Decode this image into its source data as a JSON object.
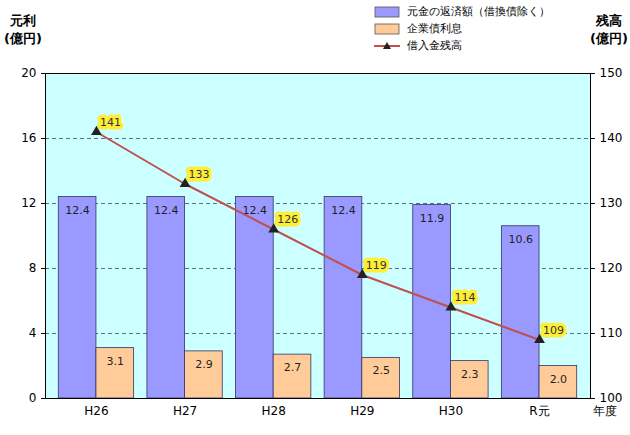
{
  "chart_data": {
    "type": "bar",
    "y_label": "元利\n(億円)",
    "y2_label": "残高\n(億円)",
    "x_label": "年度",
    "categories": [
      "H26",
      "H27",
      "H28",
      "H29",
      "H30",
      "R元"
    ],
    "series": [
      {
        "name": "元金の返済額（借換債除く）",
        "type": "bar",
        "color": "#9999ff",
        "values": [
          12.4,
          12.4,
          12.4,
          12.4,
          11.9,
          10.6
        ]
      },
      {
        "name": "企業債利息",
        "type": "bar",
        "color": "#ffcc99",
        "values": [
          3.1,
          2.9,
          2.7,
          2.5,
          2.3,
          2.0
        ],
        "value_labels": [
          "3.1",
          "2.9",
          "2.7",
          "2.5",
          "2.3",
          "2.0"
        ]
      },
      {
        "name": "借入金残高",
        "type": "line",
        "axis": "y2",
        "color": "#c0504d",
        "marker": "triangle",
        "values": [
          141,
          133,
          126,
          119,
          114,
          109
        ]
      }
    ],
    "ylim": [
      0,
      20
    ],
    "yticks": [
      0,
      4,
      8,
      12,
      16,
      20
    ],
    "y2lim": [
      100,
      150
    ],
    "y2ticks": [
      100,
      110,
      120,
      130,
      140,
      150
    ],
    "grid": true,
    "data_labels": true,
    "legend": "top-right"
  }
}
